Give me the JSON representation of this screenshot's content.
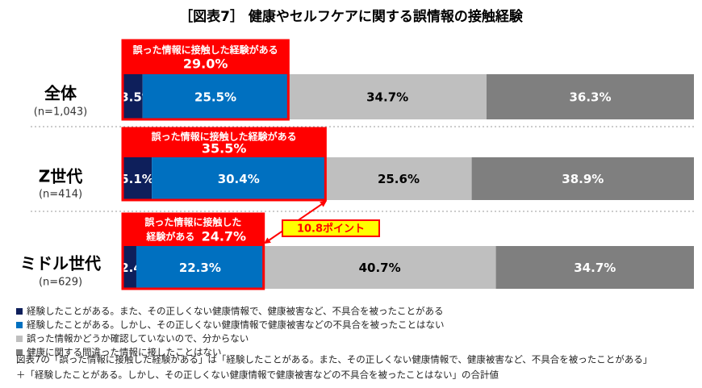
{
  "chart_data": {
    "type": "stacked-bar-horizontal",
    "title": "［図表7］ 健康やセルフケアに関する誤情報の接触経験",
    "categories": [
      "全体",
      "Z世代",
      "ミドル世代"
    ],
    "category_notes": [
      "(n=1,043)",
      "(n=414)",
      "(n=629)"
    ],
    "series": [
      {
        "name": "経験したことがある。また、その正しくない健康情報で、健康被害など、不具合を被ったことがある",
        "color": "#0e1f5b",
        "label_color": "#ffffff",
        "values": [
          3.5,
          5.1,
          2.4
        ],
        "value_labels": [
          "3.5%",
          "5.1%",
          "2.4%"
        ]
      },
      {
        "name": "経験したことがある。しかし、その正しくない健康情報で健康被害などの不具合を被ったことはない",
        "color": "#0070c0",
        "label_color": "#ffffff",
        "values": [
          25.5,
          30.4,
          22.3
        ],
        "value_labels": [
          "25.5%",
          "30.4%",
          "22.3%"
        ]
      },
      {
        "name": "誤った情報かどうか確認していないので、分からない",
        "color": "#bfbfbf",
        "label_color": "#000000",
        "values": [
          34.7,
          25.6,
          40.7
        ],
        "value_labels": [
          "34.7%",
          "25.6%",
          "40.7%"
        ]
      },
      {
        "name": "健康に関する間違った情報に接したことはない",
        "color": "#7f7f7f",
        "label_color": "#ffffff",
        "values": [
          36.3,
          38.9,
          34.7
        ],
        "value_labels": [
          "36.3%",
          "38.9%",
          "34.7%"
        ]
      }
    ],
    "annotations": [
      {
        "lines": [
          "誤った情報に接触した経験がある"
        ],
        "total_label": "29.0%"
      },
      {
        "lines": [
          "誤った情報に接触した経験がある"
        ],
        "total_label": "35.5%"
      },
      {
        "lines": [
          "誤った情報に接触した",
          "経験がある"
        ],
        "total_label": "24.7%"
      }
    ],
    "difference_label": "10.8ポイント",
    "annotation_color": "#ff0000",
    "footnotes": [
      "図表7の「誤った情報に接触した経験がある」は「経験したことがある。また、その正しくない健康情報で、健康被害など、不具合を被ったことがある」",
      "＋「経験したことがある。しかし、その正しくない健康情報で健康被害などの不具合を被ったことはない」の合計値"
    ]
  }
}
